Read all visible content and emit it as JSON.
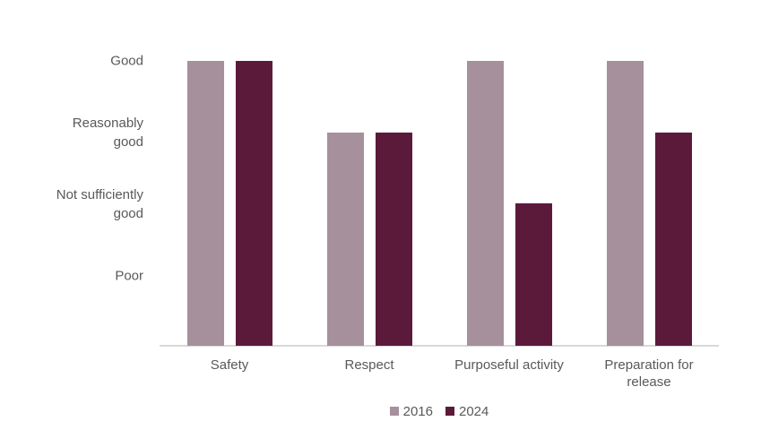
{
  "chart_data": {
    "type": "bar",
    "title": "",
    "xlabel": "",
    "ylabel": "",
    "categories": [
      "Safety",
      "Respect",
      "Purposeful activity",
      "Preparation for\nrelease"
    ],
    "series": [
      {
        "name": "2016",
        "color": "#A6909C",
        "values": [
          4,
          3,
          4,
          4
        ]
      },
      {
        "name": "2024",
        "color": "#5C1A3B",
        "values": [
          4,
          3,
          2,
          3
        ]
      }
    ],
    "value_scale": {
      "4": "Good",
      "3": "Reasonably good",
      "2": "Not sufficiently good",
      "1": "Poor"
    },
    "yticks": [
      {
        "label": "Good",
        "value": 4
      },
      {
        "label": "Reasonably\ngood",
        "value": 3
      },
      {
        "label": "Not sufficiently\ngood",
        "value": 2
      },
      {
        "label": "Poor",
        "value": 1
      }
    ],
    "ylim": [
      0,
      4
    ],
    "grid": false,
    "legend_position": "bottom",
    "legend": [
      "2016",
      "2024"
    ],
    "axis_line_color": "#D9D9D9",
    "text_color": "#595959",
    "background_color": "#FFFFFF"
  }
}
